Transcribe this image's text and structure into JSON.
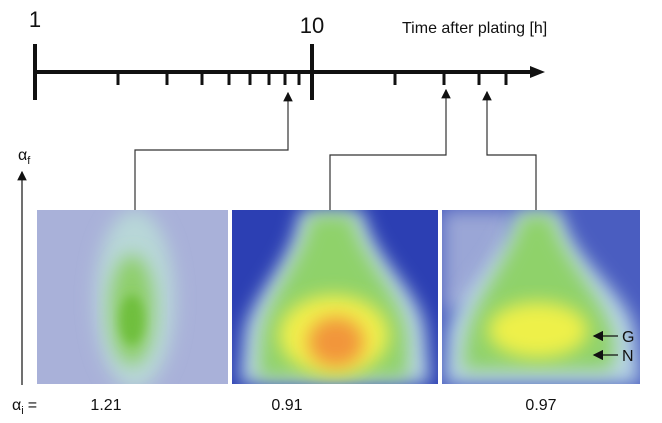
{
  "axis": {
    "start_label": "1",
    "decade_label": "10",
    "title": "Time after plating [h]"
  },
  "y_label": {
    "symbol": "α",
    "sub": "f"
  },
  "x_label": {
    "symbol": "α",
    "sub": "i",
    "suffix": "="
  },
  "panels": [
    {
      "value": "1.21"
    },
    {
      "value": "0.91"
    },
    {
      "value": "0.97"
    }
  ],
  "markers": {
    "g": "G",
    "n": "N"
  }
}
